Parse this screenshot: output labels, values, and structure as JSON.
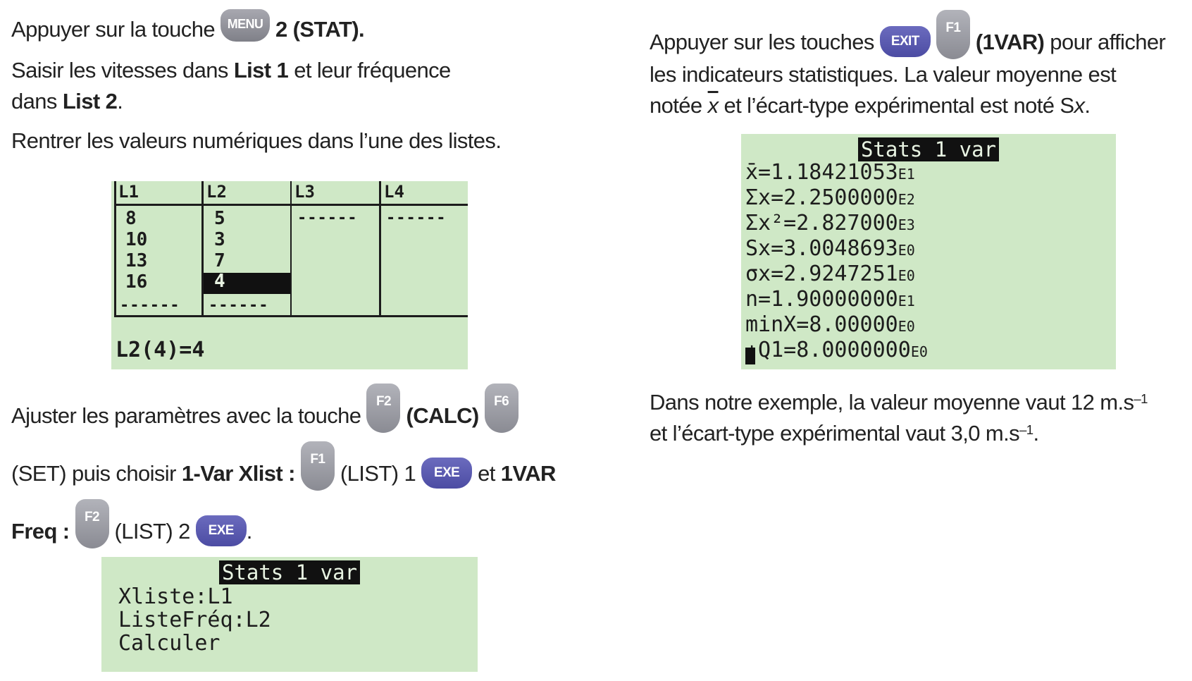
{
  "left": {
    "p1": {
      "a": "Appuyer sur la touche",
      "key_menu": "MENU",
      "b": "2 (STAT)."
    },
    "p2": {
      "a": "Saisir les vitesses dans",
      "b": "List 1",
      "c": "et leur fréquence",
      "d": "dans",
      "e": "List 2",
      "f": "."
    },
    "p3": "Rentrer les valeurs numériques dans l’une des listes.",
    "list_screen": {
      "headers": [
        "L1",
        "L2",
        "L3",
        "L4"
      ],
      "col1": [
        "8",
        "10",
        "13",
        "16"
      ],
      "col2": [
        "5",
        "3",
        "7",
        "4"
      ],
      "dashes": "------",
      "status": "L2(4)=4"
    },
    "p4": {
      "a": "Ajuster les paramètres avec la touche",
      "key_f2": "F2",
      "b": "(CALC)",
      "key_f6": "F6"
    },
    "p5": {
      "a": "(SET) puis choisir",
      "b": "1-Var Xlist :",
      "key_f1": "F1",
      "c": "(LIST) 1",
      "key_exe": "EXE",
      "d": "et",
      "e": "1VAR"
    },
    "p6": {
      "a": "Freq :",
      "key_f2": "F2",
      "b": "(LIST) 2",
      "key_exe": "EXE",
      "c": "."
    },
    "settings_screen": {
      "title": "Stats 1 var",
      "lines": [
        "Xliste:L1",
        "ListeFréq:L2",
        "Calculer"
      ]
    }
  },
  "right": {
    "p1": {
      "a": "Appuyer sur les touches",
      "key_exit": "EXIT",
      "key_f1": "F1",
      "b": "(1VAR)",
      "c": "pour afficher"
    },
    "p2": "les indicateurs statistiques. La valeur moyenne est",
    "p3": {
      "a": "notée",
      "xbar": "x",
      "b": "et l’écart-type expérimental est noté S",
      "c": "x",
      "d": "."
    },
    "results_screen": {
      "title": "Stats 1 var",
      "lines": [
        {
          "label": "x̄=",
          "mant": "1.18421053",
          "exp": "E1"
        },
        {
          "label": "Σx=",
          "mant": "2.2500000",
          "exp": "E2"
        },
        {
          "label": "Σx²=",
          "mant": "2.827000",
          "exp": "E3"
        },
        {
          "label": "Sx=",
          "mant": "3.0048693",
          "exp": "E0"
        },
        {
          "label": "σx=",
          "mant": "2.9247251",
          "exp": "E0"
        },
        {
          "label": "n=",
          "mant": "1.90000000",
          "exp": "E1"
        },
        {
          "label": "minX=",
          "mant": "8.00000",
          "exp": "E0"
        },
        {
          "label": "↓Q1=",
          "mant": "8.0000000",
          "exp": "E0"
        }
      ]
    },
    "p4": {
      "a": "Dans notre exemple, la valeur moyenne vaut 12 m.s",
      "sup": "–1"
    },
    "p5": {
      "a": "et l’écart-type expérimental vaut 3,0 m.s",
      "sup": "–1",
      "b": "."
    }
  }
}
